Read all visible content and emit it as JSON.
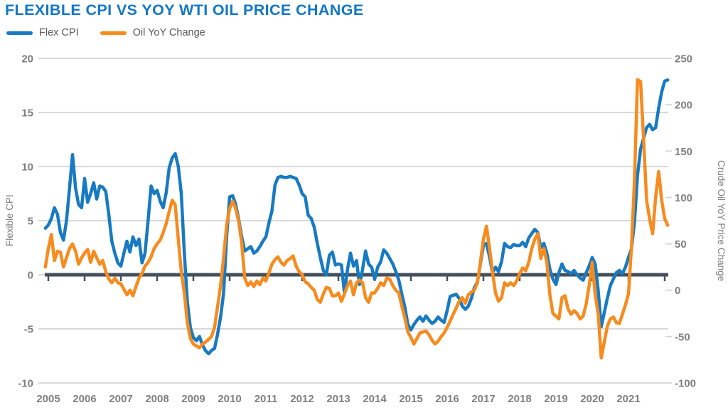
{
  "title": "FLEXIBLE CPI VS YOY WTI OIL PRICE CHANGE",
  "legend": [
    {
      "label": "Flex CPI",
      "color": "#177ac2"
    },
    {
      "label": "Oil YoY Change",
      "color": "#f78b1e"
    }
  ],
  "colors": {
    "title": "#1377c4",
    "blue_line": "#177ac2",
    "orange_line": "#f78b1e",
    "gridline": "#d9d9d9",
    "zero_axis": "#44505c",
    "tick_label": "#7f7f7f",
    "legend_text": "#595959"
  },
  "left_axis": {
    "title": "Flexible CPI",
    "min": -10,
    "max": 20,
    "ticks": [
      20,
      15,
      10,
      5,
      0,
      -5,
      -10
    ]
  },
  "right_axis": {
    "title": "Crude Oil YoY Price Change",
    "min": -100,
    "max": 250,
    "ticks": [
      250,
      200,
      150,
      100,
      50,
      0,
      -50,
      -100
    ]
  },
  "x_axis": {
    "year_labels": [
      "2005",
      "2006",
      "2007",
      "2008",
      "2009",
      "2010",
      "2011",
      "2012",
      "2013",
      "2014",
      "2015",
      "2016",
      "2017",
      "2018",
      "2019",
      "2020",
      "2021"
    ]
  },
  "chart_data": {
    "type": "line",
    "title": "FLEXIBLE CPI VS YOY WTI OIL PRICE CHANGE",
    "x_start": 2004.9167,
    "x_step": 0.083333,
    "x_range": [
      2004.9,
      2022.2
    ],
    "ylim_left": [
      -10,
      20
    ],
    "ylim_right": [
      -100,
      250
    ],
    "grid": "horizontal",
    "legend_position": "top-left",
    "series": [
      {
        "name": "Flex CPI",
        "axis": "left",
        "color": "#177ac2",
        "values": [
          4.3,
          4.6,
          5.2,
          6.2,
          5.6,
          3.9,
          3.2,
          5.0,
          8.0,
          11.1,
          8.0,
          6.5,
          6.2,
          8.9,
          6.7,
          7.5,
          8.5,
          7.0,
          8.2,
          8.1,
          7.7,
          5.6,
          3.1,
          2.0,
          1.1,
          0.8,
          2.0,
          3.1,
          2.1,
          3.5,
          2.7,
          3.3,
          1.1,
          2.0,
          5.0,
          8.2,
          7.5,
          7.8,
          6.8,
          6.2,
          7.6,
          9.9,
          10.8,
          11.2,
          10.0,
          7.5,
          2.0,
          -2.5,
          -4.9,
          -5.8,
          -6.1,
          -5.7,
          -6.5,
          -7.0,
          -7.3,
          -7.0,
          -6.8,
          -5.5,
          -3.9,
          -1.7,
          3.5,
          7.2,
          7.3,
          6.5,
          5.1,
          3.5,
          2.2,
          2.4,
          2.6,
          2.0,
          2.2,
          2.6,
          3.1,
          3.5,
          4.8,
          5.9,
          8.3,
          9.0,
          9.1,
          9.0,
          9.0,
          9.1,
          9.0,
          8.9,
          8.3,
          7.5,
          7.2,
          5.5,
          5.2,
          4.4,
          2.9,
          1.6,
          0.4,
          0.0,
          1.8,
          2.1,
          0.9,
          1.0,
          0.9,
          -1.7,
          0.5,
          2.0,
          0.8,
          1.3,
          -0.9,
          0.5,
          2.2,
          1.0,
          0.7,
          -0.4,
          0.7,
          1.2,
          2.3,
          2.0,
          1.5,
          1.0,
          0.3,
          -0.5,
          -1.8,
          -3.0,
          -4.6,
          -5.1,
          -4.6,
          -4.2,
          -3.9,
          -4.3,
          -3.8,
          -4.2,
          -4.5,
          -4.3,
          -3.9,
          -4.2,
          -4.4,
          -3.3,
          -2.0,
          -1.9,
          -1.8,
          -2.2,
          -2.9,
          -3.2,
          -2.9,
          -2.2,
          -1.2,
          -0.7,
          1.0,
          2.7,
          2.9,
          1.7,
          0.2,
          0.7,
          0.3,
          1.2,
          2.9,
          2.6,
          2.5,
          2.8,
          2.7,
          2.7,
          3.0,
          2.6,
          3.4,
          3.8,
          4.2,
          3.9,
          2.5,
          2.9,
          2.0,
          0.5,
          -0.4,
          -0.9,
          0.2,
          1.0,
          0.4,
          0.3,
          0.1,
          0.4,
          0.0,
          -0.3,
          -0.5,
          0.2,
          0.8,
          1.6,
          1.0,
          -1.5,
          -4.8,
          -3.5,
          -2.2,
          -1.0,
          -0.4,
          0.2,
          0.4,
          0.1,
          0.7,
          1.6,
          2.4,
          4.9,
          9.2,
          11.6,
          12.6,
          13.6,
          13.9,
          13.4,
          13.6,
          15.4,
          16.9,
          17.9,
          18.0
        ]
      },
      {
        "name": "Oil YoY Change",
        "axis": "right",
        "color": "#f78b1e",
        "values": [
          25,
          45,
          60,
          32,
          42,
          41,
          25,
          35,
          45,
          50,
          42,
          28,
          35,
          40,
          44,
          30,
          42,
          35,
          28,
          32,
          20,
          12,
          8,
          13,
          8,
          7,
          1,
          -5,
          0,
          -6,
          4,
          13,
          18,
          26,
          30,
          36,
          45,
          50,
          54,
          62,
          72,
          85,
          97,
          92,
          55,
          20,
          -3,
          -35,
          -52,
          -58,
          -60,
          -62,
          -58,
          -56,
          -53,
          -50,
          -40,
          -18,
          5,
          35,
          70,
          88,
          96,
          88,
          74,
          51,
          13,
          5,
          9,
          4,
          10,
          6,
          13,
          10,
          19,
          28,
          33,
          36,
          30,
          27,
          32,
          34,
          37,
          26,
          20,
          17,
          9,
          7,
          3,
          0,
          -10,
          -13,
          -4,
          3,
          2,
          -6,
          -6,
          -3,
          -12,
          -4,
          5,
          10,
          -5,
          8,
          11,
          8,
          -8,
          -13,
          -3,
          -3,
          2,
          8,
          5,
          13,
          12,
          5,
          0,
          -3,
          -17,
          -30,
          -45,
          -51,
          -58,
          -52,
          -46,
          -45,
          -44,
          -48,
          -54,
          -58,
          -55,
          -50,
          -46,
          -40,
          -33,
          -26,
          -19,
          -12,
          -8,
          -14,
          -5,
          -2,
          0,
          8,
          30,
          55,
          69,
          46,
          20,
          -3,
          -12,
          -8,
          8,
          5,
          8,
          5,
          10,
          18,
          24,
          21,
          30,
          45,
          55,
          61,
          34,
          45,
          30,
          -5,
          -25,
          -28,
          -31,
          -8,
          -6,
          -20,
          -26,
          -22,
          -25,
          -31,
          -28,
          -15,
          5,
          30,
          -5,
          -26,
          -73,
          -56,
          -39,
          -31,
          -29,
          -35,
          -36,
          -26,
          -16,
          -4,
          46,
          120,
          227,
          225,
          164,
          97,
          77,
          61,
          100,
          128,
          97,
          77,
          70
        ]
      }
    ]
  }
}
